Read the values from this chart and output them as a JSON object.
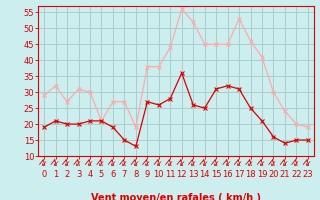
{
  "x": [
    0,
    1,
    2,
    3,
    4,
    5,
    6,
    7,
    8,
    9,
    10,
    11,
    12,
    13,
    14,
    15,
    16,
    17,
    18,
    19,
    20,
    21,
    22,
    23
  ],
  "wind_avg": [
    19,
    21,
    20,
    20,
    21,
    21,
    19,
    15,
    13,
    27,
    26,
    28,
    36,
    26,
    25,
    31,
    32,
    31,
    25,
    21,
    16,
    14,
    15,
    15
  ],
  "wind_gust": [
    29,
    32,
    27,
    31,
    30,
    21,
    27,
    27,
    19,
    38,
    38,
    44,
    56,
    52,
    45,
    45,
    45,
    53,
    46,
    41,
    30,
    24,
    20,
    19
  ],
  "avg_color": "#dd0000",
  "gust_color": "#ffaaaa",
  "bg_color": "#cceeee",
  "grid_color": "#aacccc",
  "axis_color": "#dd0000",
  "xlabel": "Vent moyen/en rafales ( km/h )",
  "ylim": [
    10,
    57
  ],
  "yticks": [
    10,
    15,
    20,
    25,
    30,
    35,
    40,
    45,
    50,
    55
  ],
  "xticks": [
    0,
    1,
    2,
    3,
    4,
    5,
    6,
    7,
    8,
    9,
    10,
    11,
    12,
    13,
    14,
    15,
    16,
    17,
    18,
    19,
    20,
    21,
    22,
    23
  ],
  "fontsize": 6,
  "marker_size": 2.5,
  "linewidth": 0.9
}
